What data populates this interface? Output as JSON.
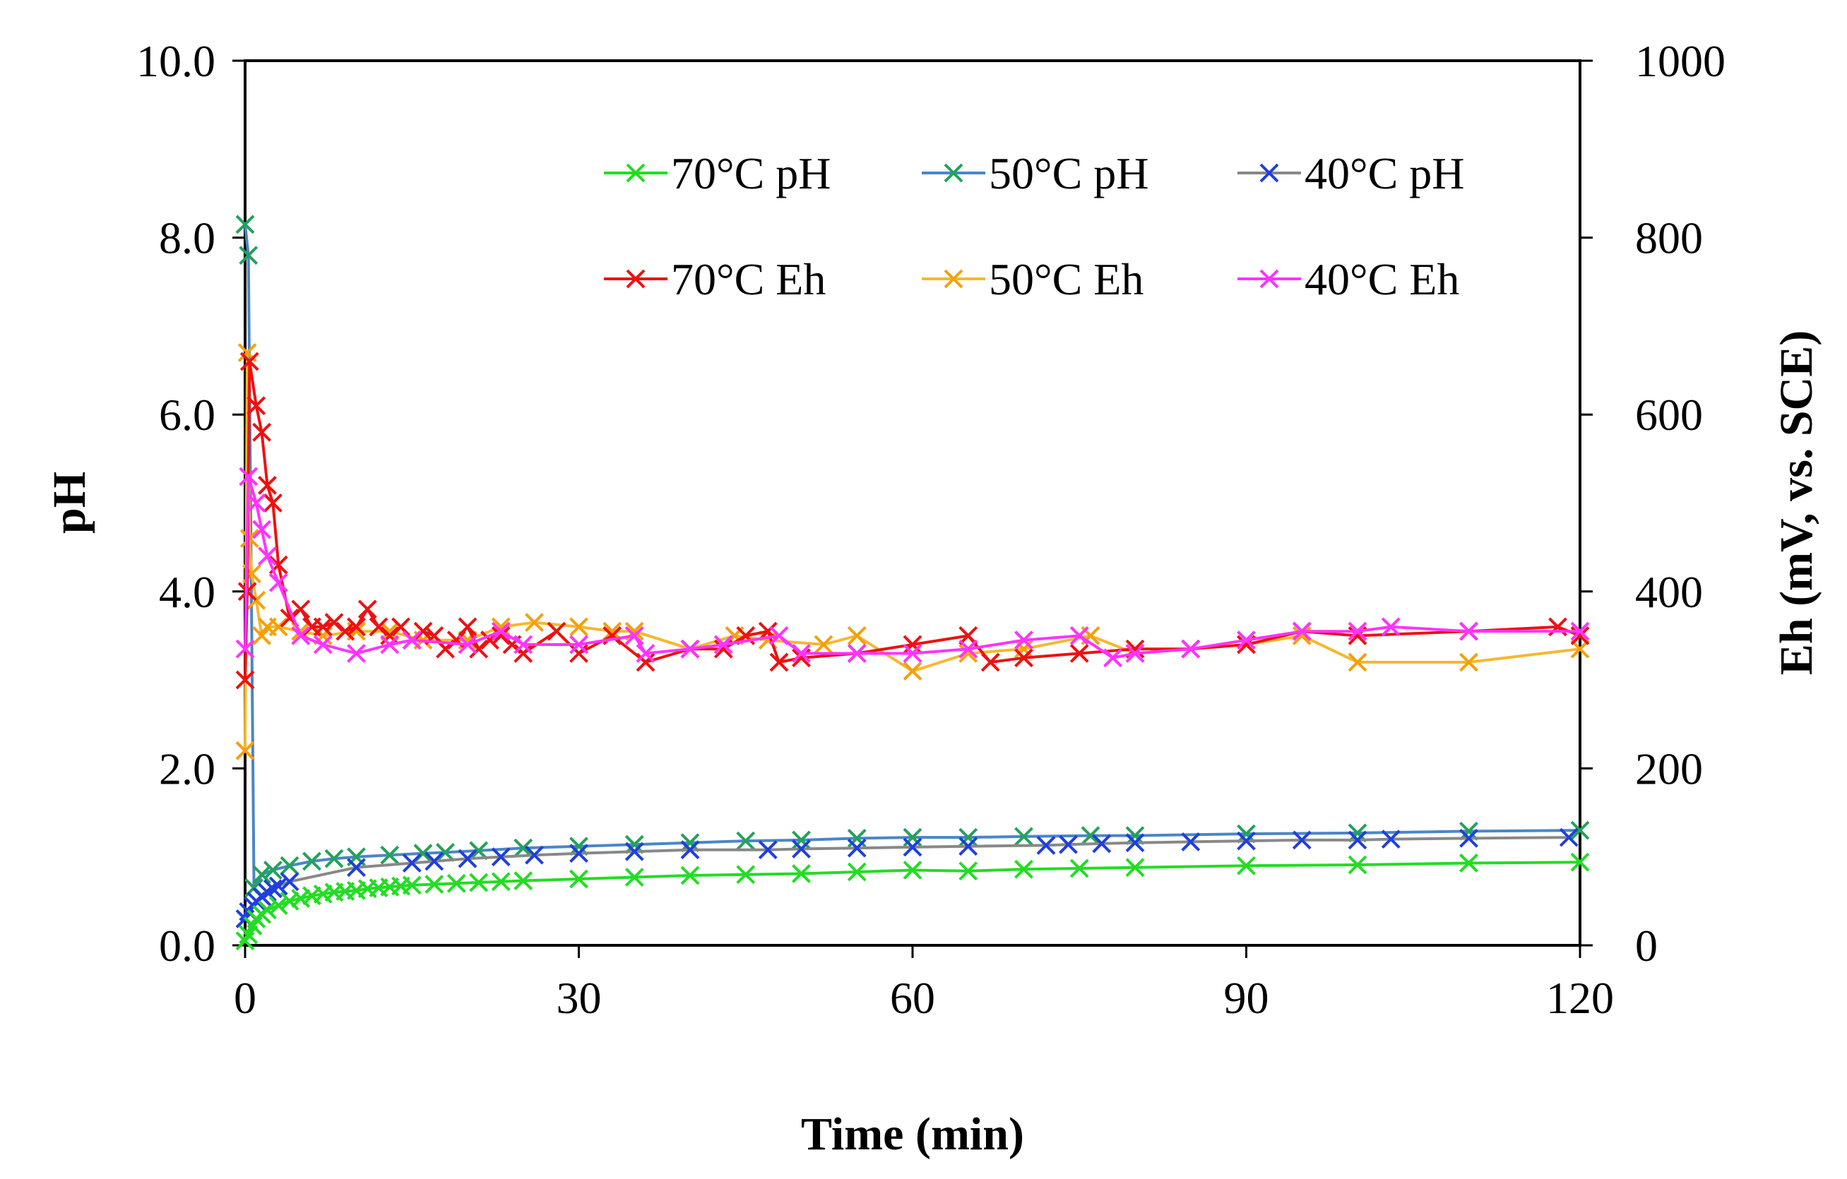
{
  "chart_data": {
    "type": "line",
    "title": "",
    "xlabel": "Time (min)",
    "ylabel": "pH",
    "y2label": "Eh (mV, vs. SCE)",
    "xlim": [
      0,
      120
    ],
    "ylim": [
      0,
      10
    ],
    "y2lim": [
      0,
      1000
    ],
    "x_ticks": [
      0,
      30,
      60,
      90,
      120
    ],
    "x_tick_labels": [
      "0",
      "30",
      "60",
      "90",
      "120"
    ],
    "y_ticks": [
      0,
      2,
      4,
      6,
      8,
      10
    ],
    "y_tick_labels": [
      "0.0",
      "2.0",
      "4.0",
      "6.0",
      "8.0",
      "10.0"
    ],
    "y2_ticks": [
      0,
      200,
      400,
      600,
      800,
      1000
    ],
    "y2_tick_labels": [
      "0",
      "200",
      "400",
      "600",
      "800",
      "1000"
    ],
    "grid": false,
    "legend_position": "top-right",
    "marker": "x",
    "series": [
      {
        "name": "70°C pH",
        "axis": "left",
        "color": "#22dd22",
        "line_color": "#22dd22",
        "x": [
          0,
          0.3,
          0.7,
          1,
          1.5,
          2,
          3,
          4,
          5,
          6,
          7,
          8,
          9,
          10,
          11,
          12,
          13,
          14,
          15,
          17,
          19,
          21,
          23,
          25,
          30,
          35,
          40,
          45,
          50,
          55,
          60,
          65,
          70,
          75,
          80,
          90,
          100,
          110,
          120
        ],
        "y": [
          0.05,
          0.12,
          0.22,
          0.3,
          0.35,
          0.4,
          0.45,
          0.5,
          0.53,
          0.56,
          0.58,
          0.6,
          0.61,
          0.62,
          0.64,
          0.65,
          0.66,
          0.67,
          0.68,
          0.69,
          0.7,
          0.71,
          0.72,
          0.73,
          0.75,
          0.77,
          0.79,
          0.8,
          0.81,
          0.83,
          0.85,
          0.84,
          0.86,
          0.87,
          0.88,
          0.9,
          0.91,
          0.93,
          0.94
        ]
      },
      {
        "name": "50°C pH",
        "axis": "left",
        "color": "#22a25a",
        "line_color": "#4a86c6",
        "x": [
          0,
          0.3,
          0.8,
          1.5,
          2.5,
          4,
          6,
          8,
          10,
          13,
          16,
          18,
          21,
          25,
          30,
          35,
          40,
          45,
          50,
          55,
          60,
          65,
          70,
          76,
          80,
          90,
          100,
          110,
          120
        ],
        "y": [
          8.15,
          7.8,
          0.65,
          0.8,
          0.85,
          0.9,
          0.95,
          0.98,
          1.0,
          1.02,
          1.04,
          1.05,
          1.07,
          1.1,
          1.12,
          1.14,
          1.16,
          1.18,
          1.19,
          1.21,
          1.22,
          1.22,
          1.23,
          1.24,
          1.24,
          1.26,
          1.27,
          1.29,
          1.3
        ]
      },
      {
        "name": "40°C pH",
        "axis": "left",
        "color": "#1f3fdd",
        "line_color": "#888888",
        "x": [
          0,
          0.3,
          0.7,
          1,
          1.5,
          2,
          2.5,
          3,
          4,
          10,
          15,
          17,
          20,
          23,
          26,
          30,
          35,
          40,
          47,
          50,
          55,
          60,
          65,
          72,
          74,
          77,
          80,
          85,
          90,
          95,
          100,
          103,
          110,
          119
        ],
        "y": [
          0.3,
          0.38,
          0.45,
          0.5,
          0.55,
          0.6,
          0.64,
          0.67,
          0.72,
          0.88,
          0.93,
          0.95,
          0.98,
          1.0,
          1.02,
          1.04,
          1.06,
          1.08,
          1.08,
          1.09,
          1.1,
          1.11,
          1.12,
          1.13,
          1.14,
          1.15,
          1.16,
          1.17,
          1.18,
          1.19,
          1.19,
          1.2,
          1.21,
          1.22
        ]
      },
      {
        "name": "70°C Eh",
        "axis": "right",
        "color": "#ee1111",
        "line_color": "#ee1111",
        "x": [
          0,
          0.2,
          0.4,
          1,
          1.5,
          2,
          2.5,
          3,
          4,
          5,
          6,
          7,
          8,
          9,
          10,
          11,
          12,
          13,
          14,
          15,
          16,
          17,
          18,
          19,
          20,
          21,
          22,
          23,
          24,
          25,
          28,
          30,
          33,
          36,
          40,
          43,
          45,
          47,
          48,
          50,
          55,
          60,
          65,
          67,
          70,
          75,
          80,
          85,
          90,
          95,
          100,
          110,
          118,
          120
        ],
        "y": [
          300,
          400,
          660,
          610,
          580,
          520,
          500,
          430,
          370,
          380,
          360,
          360,
          365,
          355,
          360,
          380,
          360,
          350,
          360,
          345,
          355,
          350,
          335,
          345,
          360,
          335,
          345,
          350,
          340,
          330,
          355,
          330,
          350,
          320,
          335,
          335,
          350,
          355,
          320,
          325,
          330,
          340,
          350,
          320,
          325,
          330,
          335,
          335,
          340,
          355,
          350,
          355,
          360,
          350
        ]
      },
      {
        "name": "50°C Eh",
        "axis": "right",
        "color": "#f5a00a",
        "line_color": "#f5b830",
        "x": [
          0,
          0.2,
          0.4,
          0.6,
          1,
          1.5,
          2,
          3,
          5,
          7,
          10,
          13,
          16,
          20,
          23,
          26,
          30,
          33,
          35,
          40,
          44,
          47,
          52,
          55,
          60,
          65,
          70,
          76,
          80,
          85,
          90,
          95,
          100,
          110,
          120
        ],
        "y": [
          220,
          670,
          460,
          420,
          390,
          350,
          360,
          360,
          355,
          350,
          355,
          355,
          345,
          345,
          360,
          365,
          360,
          355,
          355,
          335,
          350,
          345,
          340,
          350,
          310,
          330,
          335,
          350,
          330,
          335,
          340,
          350,
          320,
          320,
          335
        ]
      },
      {
        "name": "40°C Eh",
        "axis": "right",
        "color": "#ff33ff",
        "line_color": "#ff33ff",
        "x": [
          0,
          0.3,
          1,
          1.5,
          2,
          3,
          5,
          7,
          10,
          13,
          15,
          20,
          23,
          25,
          30,
          35,
          36,
          40,
          43,
          48,
          50,
          55,
          60,
          65,
          70,
          75,
          78,
          80,
          85,
          90,
          95,
          100,
          103,
          110,
          120
        ],
        "y": [
          335,
          530,
          500,
          470,
          440,
          410,
          350,
          340,
          330,
          340,
          345,
          340,
          355,
          340,
          340,
          350,
          330,
          335,
          340,
          350,
          330,
          330,
          330,
          335,
          345,
          350,
          325,
          330,
          335,
          345,
          355,
          355,
          360,
          355,
          355
        ]
      }
    ]
  }
}
